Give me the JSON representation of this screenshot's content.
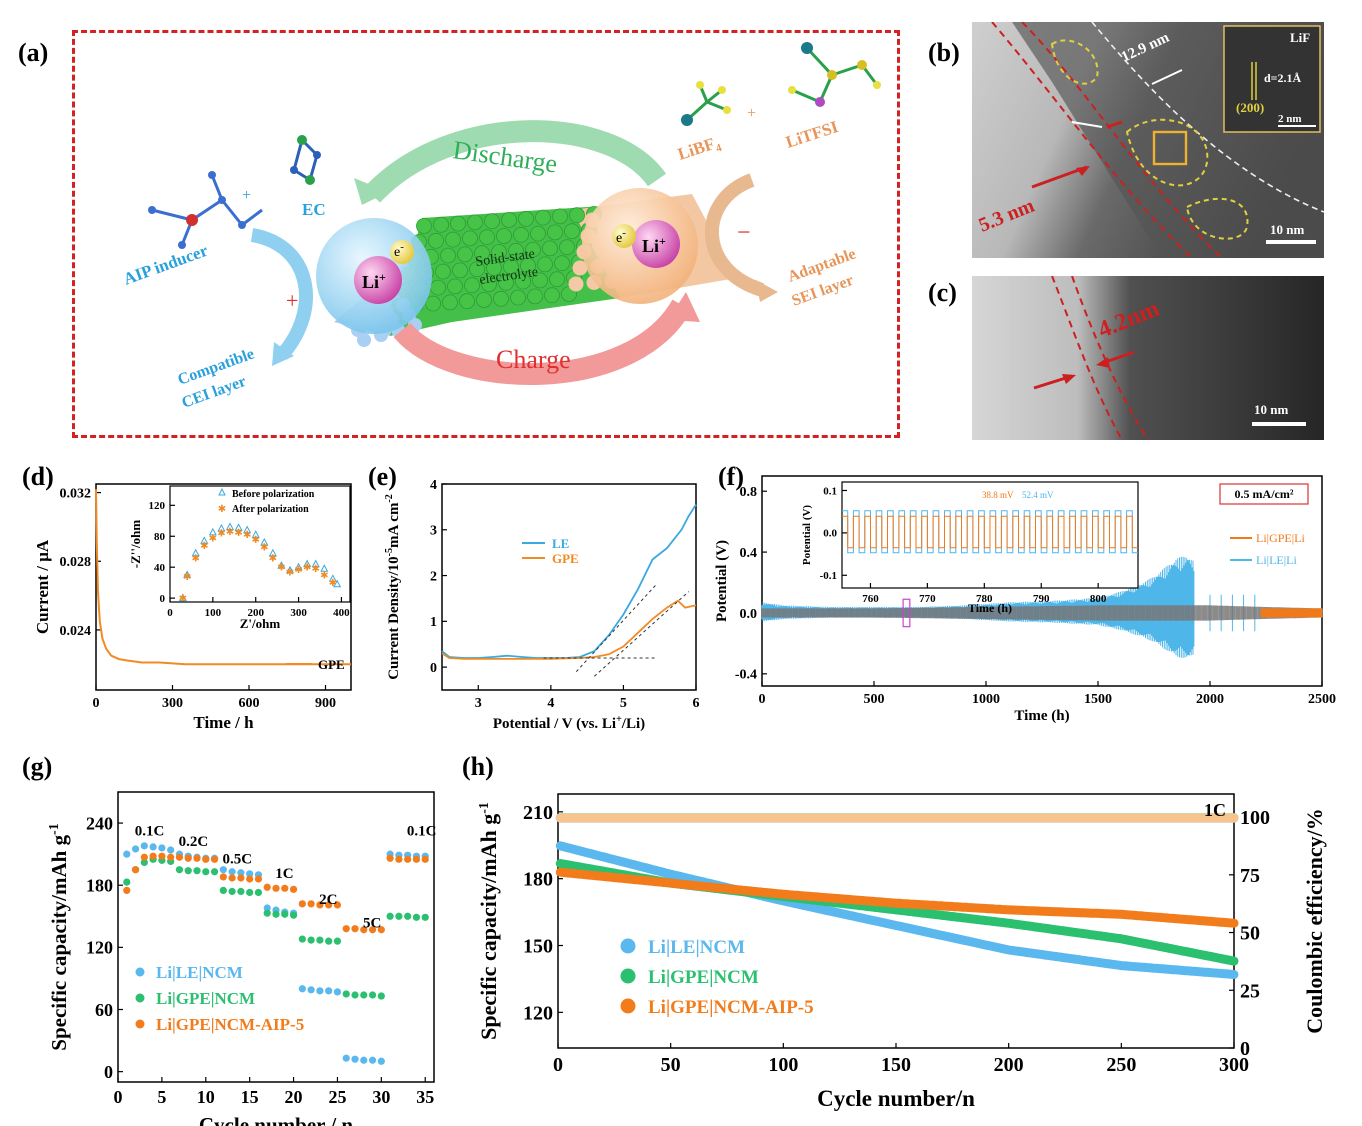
{
  "labels": {
    "a": "(a)",
    "b": "(b)",
    "c": "(c)",
    "d": "(d)",
    "e": "(e)",
    "f": "(f)",
    "g": "(g)",
    "h": "(h)"
  },
  "schematic": {
    "aip_inducer": "AIP inducer",
    "plus1": "+",
    "ec": "EC",
    "discharge": "Discharge",
    "charge": "Charge",
    "lithium": "Li",
    "lithium_sup": "+",
    "electron": "e",
    "electron_sup": "-",
    "sse1": "Solid-state",
    "sse2": "electrolyte",
    "libf4": "LiBF",
    "libf4_sub": "4",
    "plus2": "+",
    "litfsi": "LiTFSI",
    "minus": "−",
    "plus3": "+",
    "cei1": "Compatible",
    "cei2": "CEI layer",
    "sei1": "Adaptable",
    "sei2": "SEI layer",
    "colors": {
      "cathode": "#2aa0dc",
      "anode": "#e8955a",
      "discharge": "#3db86a",
      "charge": "#e03030"
    }
  },
  "tem_b": {
    "thick1": "12.9 nm",
    "thick2": "5.3 nm",
    "inset_title": "LiF",
    "inset_d": "d=2.1Å",
    "inset_plane": "(200)",
    "inset_scale": "2 nm",
    "scale": "10 nm"
  },
  "tem_c": {
    "thick": "4.2nm",
    "scale": "10 nm"
  },
  "chart_d": {
    "type": "line",
    "xlabel": "Time / h",
    "ylabel": "Current / μA",
    "xticks": [
      "0",
      "300",
      "600",
      "900"
    ],
    "yticks": [
      "0.024",
      "0.028",
      "0.032"
    ],
    "xlim": [
      0,
      1000
    ],
    "ylim": [
      0.0205,
      0.0325
    ],
    "legend": "GPE",
    "series": [
      {
        "name": "GPE",
        "x": [
          0,
          3,
          8,
          15,
          25,
          40,
          60,
          90,
          130,
          180,
          250,
          350,
          500,
          700,
          1000
        ],
        "y": [
          0.0322,
          0.029,
          0.0262,
          0.0245,
          0.0235,
          0.0229,
          0.0225,
          0.0223,
          0.0222,
          0.0221,
          0.0221,
          0.022,
          0.022,
          0.022,
          0.022
        ]
      }
    ],
    "inset": {
      "xlabel": "Z'/ohm",
      "ylabel": "-Z''/ohm",
      "xticks": [
        "0",
        "100",
        "200",
        "300",
        "400"
      ],
      "yticks": [
        "0",
        "40",
        "80",
        "120"
      ],
      "xlim": [
        0,
        420
      ],
      "ylim": [
        -5,
        145
      ],
      "legend": [
        "Before polarization",
        "After polarization"
      ],
      "before": {
        "x": [
          30,
          40,
          60,
          80,
          100,
          120,
          140,
          160,
          180,
          200,
          220,
          240,
          260,
          280,
          300,
          320,
          340,
          360,
          380,
          390
        ],
        "y": [
          0,
          30,
          58,
          74,
          85,
          90,
          92,
          91,
          88,
          82,
          72,
          58,
          42,
          36,
          40,
          44,
          44,
          38,
          25,
          18
        ]
      },
      "after": {
        "x": [
          30,
          40,
          60,
          80,
          100,
          120,
          140,
          160,
          180,
          200,
          220,
          240,
          260,
          280,
          300,
          320,
          340,
          360,
          380
        ],
        "y": [
          0,
          28,
          52,
          68,
          78,
          84,
          86,
          85,
          82,
          76,
          66,
          52,
          40,
          34,
          37,
          40,
          38,
          30,
          20
        ]
      }
    }
  },
  "chart_e": {
    "type": "line",
    "xlabel": "Potential / V (vs. Li",
    "xlabel_sup": "+",
    "xlabel_end": "/Li)",
    "ylabel": "Current Density/10",
    "ylabel_sup": "-5",
    "ylabel_end": "mA cm",
    "ylabel_sup2": "-2",
    "xticks": [
      "3",
      "4",
      "5",
      "6"
    ],
    "yticks": [
      "0",
      "1",
      "2",
      "3",
      "4"
    ],
    "xlim": [
      2.5,
      6.0
    ],
    "ylim": [
      -0.5,
      4.0
    ],
    "legend": [
      "LE",
      "GPE"
    ],
    "series": [
      {
        "name": "LE",
        "x": [
          2.5,
          2.6,
          2.8,
          3.0,
          3.2,
          3.4,
          3.6,
          3.8,
          4.0,
          4.2,
          4.4,
          4.6,
          4.8,
          5.0,
          5.2,
          5.4,
          5.6,
          5.8,
          5.9,
          6.0
        ],
        "y": [
          0.35,
          0.22,
          0.2,
          0.2,
          0.22,
          0.25,
          0.22,
          0.2,
          0.2,
          0.2,
          0.22,
          0.35,
          0.7,
          1.15,
          1.7,
          2.35,
          2.6,
          3.0,
          3.3,
          3.55
        ]
      },
      {
        "name": "GPE",
        "x": [
          2.5,
          2.6,
          2.8,
          3.0,
          3.2,
          3.4,
          3.6,
          3.8,
          4.0,
          4.2,
          4.4,
          4.6,
          4.8,
          5.0,
          5.2,
          5.4,
          5.6,
          5.75,
          5.85,
          6.0
        ],
        "y": [
          0.3,
          0.2,
          0.18,
          0.18,
          0.18,
          0.18,
          0.18,
          0.18,
          0.18,
          0.19,
          0.2,
          0.22,
          0.28,
          0.45,
          0.75,
          1.05,
          1.3,
          1.45,
          1.3,
          1.35
        ]
      }
    ]
  },
  "chart_f": {
    "type": "line",
    "xlabel": "Time (h)",
    "ylabel": "Potential (V)",
    "xticks": [
      "0",
      "500",
      "1000",
      "1500",
      "2000",
      "2500"
    ],
    "yticks": [
      "-0.4",
      "0.0",
      "0.4",
      "0.8"
    ],
    "xlim": [
      0,
      2500
    ],
    "ylim": [
      -0.48,
      0.9
    ],
    "legend": [
      "Li|GPE|Li",
      "Li|LE|Li"
    ],
    "current_label": "0.5 mA/cm²",
    "le_envelope": {
      "x": [
        0,
        100,
        300,
        500,
        700,
        900,
        1100,
        1300,
        1500,
        1600,
        1700,
        1750,
        1800,
        1850,
        1900,
        1930
      ],
      "amp": [
        0.07,
        0.05,
        0.04,
        0.04,
        0.04,
        0.05,
        0.07,
        0.08,
        0.1,
        0.14,
        0.2,
        0.24,
        0.3,
        0.36,
        0.38,
        0.34
      ]
    },
    "gpe_envelope": {
      "x": [
        0,
        500,
        1000,
        1500,
        2000,
        2230,
        2500
      ],
      "amp": [
        0.03,
        0.03,
        0.04,
        0.05,
        0.05,
        0.04,
        0.03
      ]
    },
    "inset": {
      "xlabel": "Time (h)",
      "ylabel": "Potential (V)",
      "xticks": [
        "760",
        "770",
        "780",
        "790",
        "800"
      ],
      "yticks": [
        "-0.1",
        "0.0",
        "0.1"
      ],
      "xlim": [
        755,
        807
      ],
      "ylim": [
        -0.13,
        0.12
      ],
      "ann1": "38.8 mV",
      "ann2": "52.4 mV",
      "le_amp": 0.052,
      "gpe_amp": 0.039,
      "period": 2
    }
  },
  "chart_g": {
    "type": "scatter",
    "xlabel": "Cycle number / n",
    "ylabel": "Specific capacity/mAh g",
    "ylabel_sup": "-1",
    "xticks": [
      "0",
      "5",
      "10",
      "15",
      "20",
      "25",
      "30",
      "35"
    ],
    "yticks": [
      "0",
      "60",
      "120",
      "180",
      "240"
    ],
    "xlim": [
      0,
      36
    ],
    "ylim": [
      -10,
      270
    ],
    "rates": [
      "0.1C",
      "0.2C",
      "0.5C",
      "1C",
      "2C",
      "5C",
      "0.1C"
    ],
    "legend": [
      "Li|LE|NCM",
      "Li|GPE|NCM",
      "Li|GPE|NCM-AIP-5"
    ],
    "series": [
      {
        "name": "Li|LE|NCM",
        "values": [
          210,
          215,
          218,
          217,
          216,
          214,
          210,
          208,
          207,
          206,
          206,
          195,
          193,
          192,
          191,
          190,
          158,
          156,
          154,
          153,
          80,
          79,
          78,
          78,
          77,
          13,
          12,
          11,
          11,
          10,
          210,
          209,
          209,
          208,
          208
        ]
      },
      {
        "name": "Li|GPE|NCM",
        "values": [
          183,
          195,
          202,
          205,
          204,
          203,
          195,
          194,
          194,
          193,
          193,
          175,
          174,
          174,
          173,
          173,
          153,
          152,
          152,
          151,
          128,
          127,
          127,
          126,
          126,
          75,
          74,
          74,
          74,
          73,
          150,
          150,
          150,
          149,
          149
        ]
      },
      {
        "name": "Li|GPE|NCM-AIP-5",
        "values": [
          175,
          195,
          207,
          208,
          208,
          207,
          207,
          206,
          206,
          205,
          205,
          188,
          187,
          187,
          186,
          186,
          178,
          177,
          177,
          176,
          162,
          162,
          161,
          161,
          161,
          138,
          138,
          137,
          137,
          137,
          206,
          205,
          205,
          205,
          205
        ]
      }
    ]
  },
  "chart_h": {
    "type": "scatter",
    "xlabel": "Cycle number/n",
    "ylabel": "Specific capacity/mAh g",
    "ylabel_sup": "-1",
    "y2label": "Coulombic efficiency/%",
    "xticks": [
      "0",
      "50",
      "100",
      "150",
      "200",
      "250",
      "300"
    ],
    "yticks": [
      "120",
      "150",
      "180",
      "210"
    ],
    "y2ticks": [
      "0",
      "25",
      "50",
      "75",
      "100"
    ],
    "xlim": [
      0,
      300
    ],
    "ylim": [
      104,
      218
    ],
    "y2lim": [
      0,
      110
    ],
    "rate": "1C",
    "legend": [
      "Li|LE|NCM",
      "Li|GPE|NCM",
      "Li|GPE|NCM-AIP-5"
    ],
    "series": [
      {
        "name": "Li|LE|NCM",
        "x": [
          0,
          50,
          100,
          150,
          200,
          250,
          300
        ],
        "y": [
          195,
          182,
          170,
          159,
          148,
          141,
          137
        ]
      },
      {
        "name": "Li|GPE|NCM",
        "x": [
          0,
          50,
          100,
          150,
          200,
          250,
          300
        ],
        "y": [
          187,
          178,
          172,
          166,
          160,
          153,
          143
        ]
      },
      {
        "name": "Li|GPE|NCM-AIP-5",
        "x": [
          0,
          50,
          100,
          150,
          200,
          250,
          300
        ],
        "y": [
          183,
          178,
          173,
          169,
          166,
          164,
          160
        ]
      }
    ],
    "ce": [
      {
        "name": "Li|LE|NCM",
        "value": 99.5
      },
      {
        "name": "Li|GPE|NCM",
        "value": 99.8
      },
      {
        "name": "Li|GPE|NCM-AIP-5",
        "value": 99.6
      }
    ]
  }
}
